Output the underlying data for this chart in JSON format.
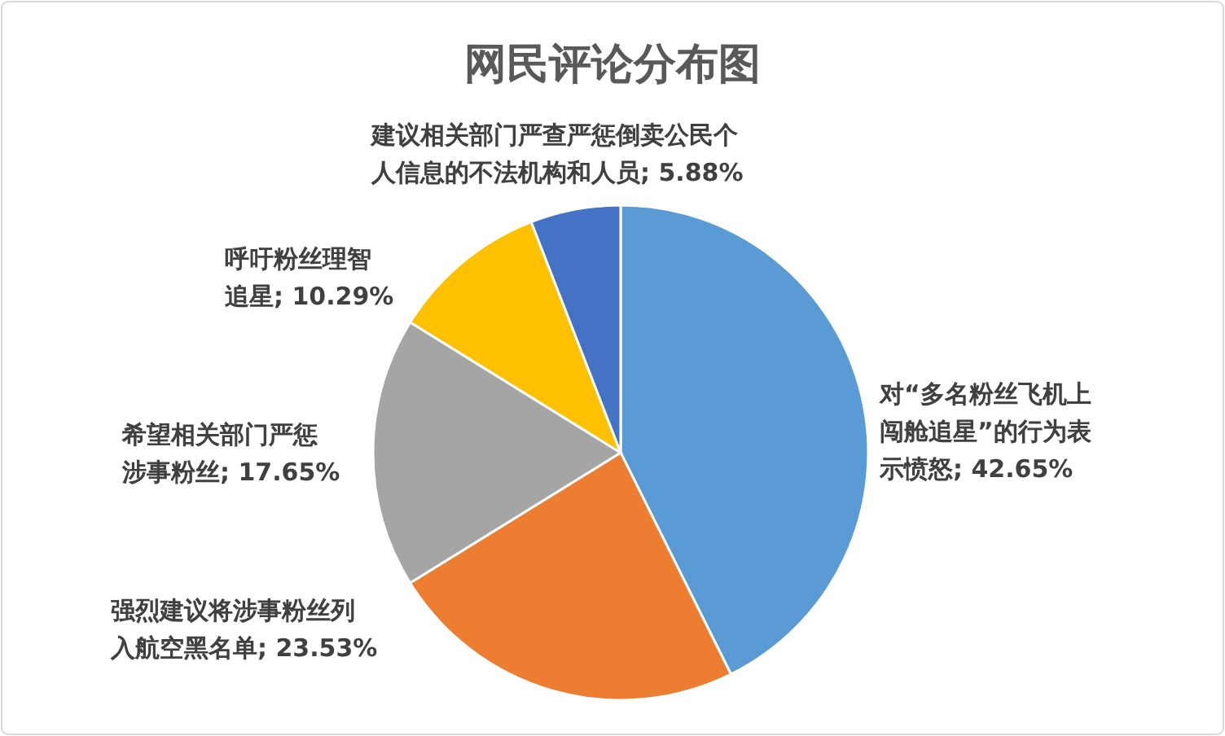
{
  "chart_data": {
    "type": "pie",
    "title": "网民评论分布图",
    "categories": [
      "对“多名粉丝飞机上闯舱追星”的行为表示愤怒",
      "强烈建议将涉事粉丝列入航空黑名单",
      "希望相关部门严惩涉事粉丝",
      "呼吁粉丝理智追星",
      "建议相关部门严查严惩倒卖公民个人信息的不法机构和人员"
    ],
    "values": [
      42.65,
      23.53,
      17.65,
      10.29,
      5.88
    ],
    "value_labels": [
      "42.65%",
      "23.53%",
      "17.65%",
      "10.29%",
      "5.88%"
    ],
    "colors": [
      "#5b9bd5",
      "#ed7d31",
      "#a5a5a5",
      "#ffc000",
      "#4472c4"
    ]
  }
}
